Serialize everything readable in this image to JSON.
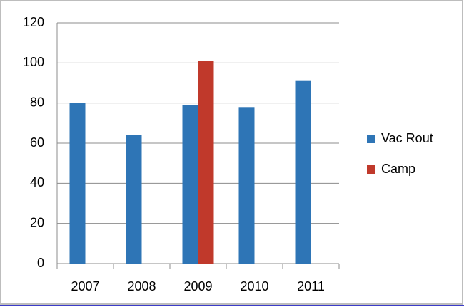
{
  "chart_data": {
    "type": "bar",
    "categories": [
      "2007",
      "2008",
      "2009",
      "2010",
      "2011"
    ],
    "series": [
      {
        "name": "Vac Rout",
        "color": "#2e75b6",
        "values": [
          80,
          64,
          79,
          78,
          91
        ]
      },
      {
        "name": "Camp",
        "color": "#c0392b",
        "values": [
          null,
          null,
          101,
          null,
          null
        ]
      }
    ],
    "ylim": [
      0,
      120
    ],
    "yticks": [
      0,
      20,
      40,
      60,
      80,
      100,
      120
    ],
    "grid": true,
    "legend": "right"
  }
}
